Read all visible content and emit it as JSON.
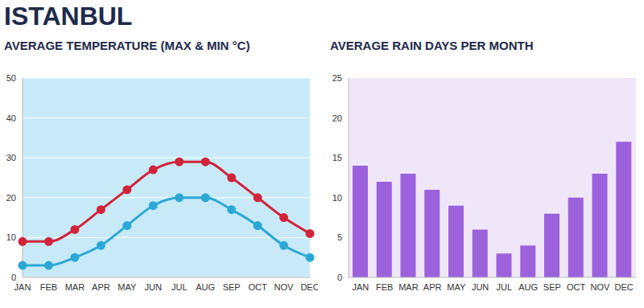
{
  "title": "ISTANBUL",
  "chart_data": [
    {
      "type": "line",
      "title": "AVERAGE TEMPERATURE (MAX & MIN °C)",
      "categories": [
        "JAN",
        "FEB",
        "MAR",
        "APR",
        "MAY",
        "JUN",
        "JUL",
        "AUG",
        "SEP",
        "OCT",
        "NOV",
        "DEC"
      ],
      "series": [
        {
          "color": "#d1243a",
          "marker": "circle",
          "line_style": "solid",
          "values": [
            9,
            9,
            12,
            17,
            22,
            27,
            29,
            29,
            25,
            20,
            15,
            11
          ]
        },
        {
          "color": "#2ba8d6",
          "marker": "circle",
          "line_style": "solid",
          "values": [
            3,
            3,
            5,
            8,
            13,
            18,
            20,
            20,
            17,
            13,
            8,
            5
          ]
        }
      ],
      "ylim": [
        0,
        50
      ],
      "yticks": [
        0,
        10,
        20,
        30,
        40,
        50
      ],
      "grid": true
    },
    {
      "type": "bar",
      "title": "AVERAGE RAIN DAYS PER MONTH",
      "categories": [
        "JAN",
        "FEB",
        "MAR",
        "APR",
        "MAY",
        "JUN",
        "JUL",
        "AUG",
        "SEP",
        "OCT",
        "NOV",
        "DEC"
      ],
      "values": [
        14,
        12,
        13,
        11,
        9,
        6,
        3,
        4,
        8,
        10,
        13,
        17
      ],
      "color": "#9b62dc",
      "ylim": [
        0,
        25
      ],
      "yticks": [
        0,
        5,
        10,
        15,
        20,
        25
      ],
      "grid": false
    }
  ]
}
